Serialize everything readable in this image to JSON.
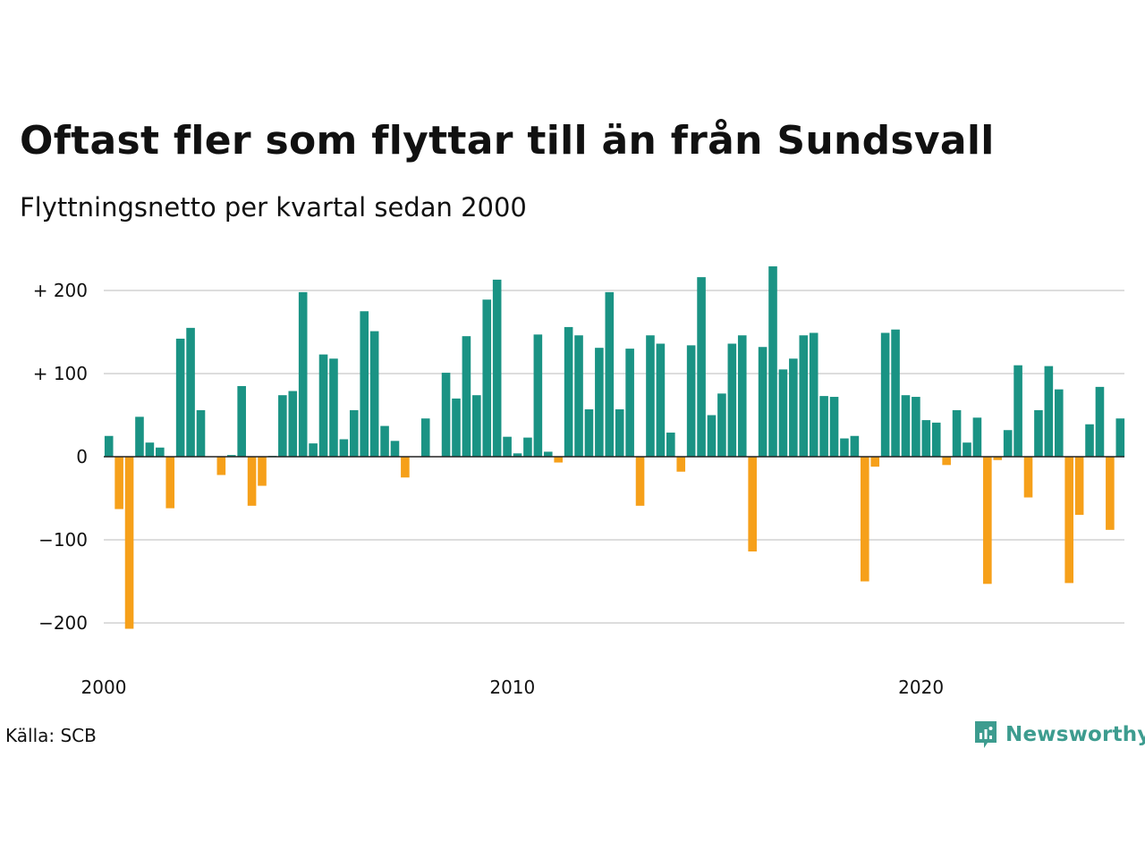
{
  "title": "Oftast fler som flyttar till än från Sundsvall",
  "subtitle": "Flyttningsnetto per kvartal sedan 2000",
  "source": "Källa: SCB",
  "brand": {
    "name": "Newsworthy",
    "color": "#3d9c8f"
  },
  "colors": {
    "positive": "#1a9384",
    "negative": "#f6a01a",
    "grid": "#dddddd",
    "zero": "#222222"
  },
  "chart_data": {
    "type": "bar",
    "xlabel": "",
    "ylabel": "",
    "ylim": [
      -215,
      230
    ],
    "y_ticks": [
      {
        "value": 200,
        "label": "+ 200"
      },
      {
        "value": 100,
        "label": "+ 100"
      },
      {
        "value": 0,
        "label": "0"
      },
      {
        "value": -100,
        "label": "−100"
      },
      {
        "value": -200,
        "label": "−200"
      }
    ],
    "x_ticks": [
      {
        "value": 2000,
        "label": "2000"
      },
      {
        "value": 2010,
        "label": "2010"
      },
      {
        "value": 2020,
        "label": "2020"
      }
    ],
    "grid": true,
    "start_year": 2000,
    "values": [
      25,
      -63,
      -207,
      48,
      17,
      11,
      -62,
      142,
      155,
      56,
      0,
      -22,
      2,
      85,
      -59,
      -35,
      1,
      74,
      79,
      198,
      16,
      123,
      118,
      21,
      56,
      175,
      151,
      37,
      19,
      -25,
      0,
      46,
      0,
      101,
      70,
      145,
      74,
      189,
      213,
      24,
      4,
      23,
      147,
      6,
      -7,
      156,
      146,
      57,
      131,
      198,
      57,
      130,
      -59,
      146,
      136,
      29,
      -18,
      134,
      216,
      50,
      76,
      136,
      146,
      -114,
      132,
      229,
      105,
      118,
      146,
      149,
      73,
      72,
      22,
      25,
      -150,
      -12,
      149,
      153,
      74,
      72,
      44,
      41,
      -10,
      56,
      17,
      47,
      -153,
      -4,
      32,
      110,
      -49,
      56,
      109,
      81,
      -152,
      -70,
      39,
      84,
      -88,
      46
    ]
  }
}
